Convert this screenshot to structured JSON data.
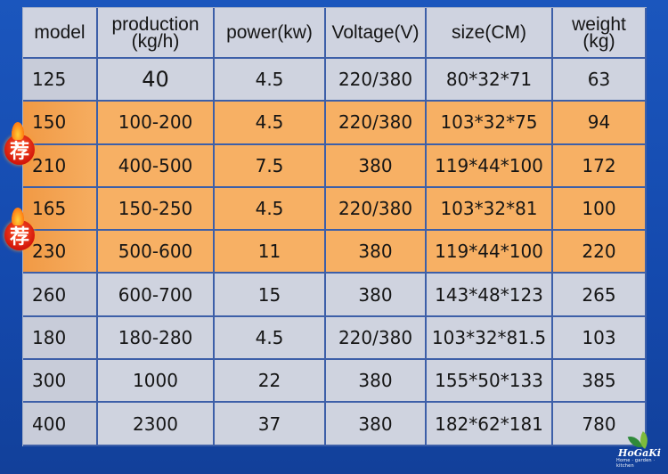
{
  "headers": [
    "model",
    "production\n(kg/h)",
    "power(kw)",
    "Voltage(V)",
    "size(CM)",
    "weight\n(kg)"
  ],
  "header_lines": [
    [
      "model"
    ],
    [
      "production",
      "(kg/h)"
    ],
    [
      "power(kw)"
    ],
    [
      "Voltage(V)"
    ],
    [
      "size(CM)"
    ],
    [
      "weight",
      "(kg)"
    ]
  ],
  "rows": [
    {
      "model": "125",
      "production": "40",
      "power": "4.5",
      "voltage": "220/380",
      "size": "80*32*71",
      "weight": "63",
      "highlight": false
    },
    {
      "model": "150",
      "production": "100-200",
      "power": "4.5",
      "voltage": "220/380",
      "size": "103*32*75",
      "weight": "94",
      "highlight": true,
      "badge": "荐"
    },
    {
      "model": "210",
      "production": "400-500",
      "power": "7.5",
      "voltage": "380",
      "size": "119*44*100",
      "weight": "172",
      "highlight": true
    },
    {
      "model": "165",
      "production": "150-250",
      "power": "4.5",
      "voltage": "220/380",
      "size": "103*32*81",
      "weight": "100",
      "highlight": true,
      "badge": "荐"
    },
    {
      "model": "230",
      "production": "500-600",
      "power": "11",
      "voltage": "380",
      "size": "119*44*100",
      "weight": "220",
      "highlight": true
    },
    {
      "model": "260",
      "production": "600-700",
      "power": "15",
      "voltage": "380",
      "size": "143*48*123",
      "weight": "265",
      "highlight": false
    },
    {
      "model": "180",
      "production": "180-280",
      "power": "4.5",
      "voltage": "220/380",
      "size": "103*32*81.5",
      "weight": "103",
      "highlight": false
    },
    {
      "model": "300",
      "production": "1000",
      "power": "22",
      "voltage": "380",
      "size": "155*50*133",
      "weight": "385",
      "highlight": false
    },
    {
      "model": "400",
      "production": "2300",
      "power": "37",
      "voltage": "380",
      "size": "182*62*181",
      "weight": "780",
      "highlight": false
    }
  ],
  "colors": {
    "background": "#1446a8",
    "gray_row": "#cfd3df",
    "orange_row": "#f7b064",
    "badge": "#d3160b"
  },
  "logo": {
    "name": "HoGaKi",
    "tagline": "Home · garden · kitchen"
  }
}
